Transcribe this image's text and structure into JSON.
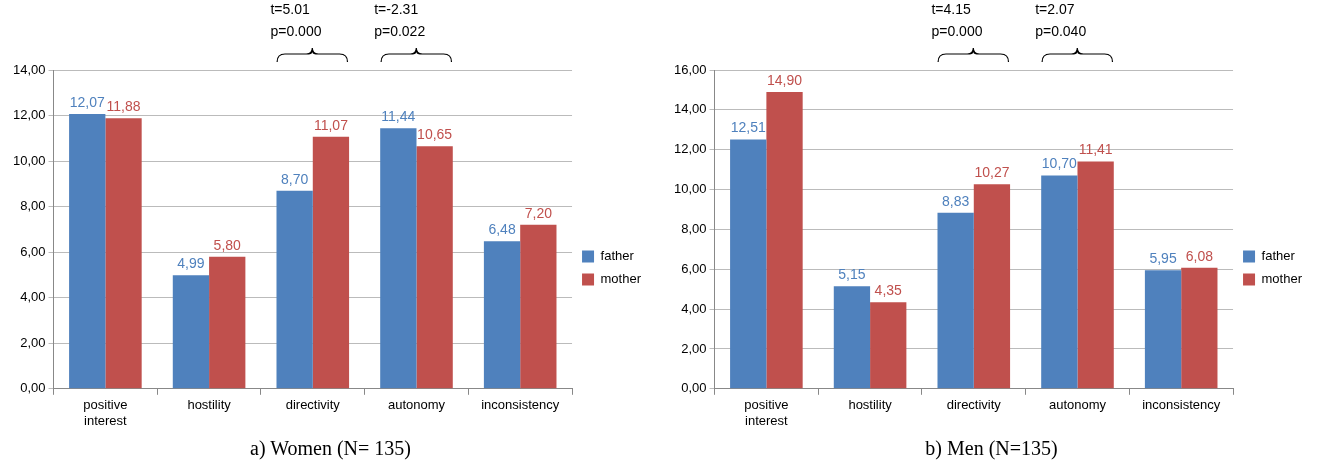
{
  "chart_data": [
    {
      "type": "bar",
      "title": "a) Women (N= 135)",
      "categories": [
        "positive interest",
        "hostility",
        "directivity",
        "autonomy",
        "inconsistency"
      ],
      "series": [
        {
          "name": "father",
          "color": "#4f81bd",
          "values": [
            12.07,
            4.99,
            8.7,
            11.44,
            6.48
          ],
          "value_labels": [
            "12,07",
            "4,99",
            "8,70",
            "11,44",
            "6,48"
          ]
        },
        {
          "name": "mother",
          "color": "#c0504d",
          "values": [
            11.88,
            5.8,
            11.07,
            10.65,
            7.2
          ],
          "value_labels": [
            "11,88",
            "5,80",
            "11,07",
            "10,65",
            "7,20"
          ]
        }
      ],
      "ylim": [
        0,
        14
      ],
      "yticks": [
        {
          "value": 0,
          "label": "0,00"
        },
        {
          "value": 2,
          "label": "2,00"
        },
        {
          "value": 4,
          "label": "4,00"
        },
        {
          "value": 6,
          "label": "6,00"
        },
        {
          "value": 8,
          "label": "8,00"
        },
        {
          "value": 10,
          "label": "10,00"
        },
        {
          "value": 12,
          "label": "12,00"
        },
        {
          "value": 14,
          "label": "14,00"
        }
      ],
      "grid": "y",
      "legend": "right",
      "annotations": [
        "t=5.01\np=0.000",
        "t=-2.31\np=0.022"
      ]
    },
    {
      "type": "bar",
      "title": "b) Men (N=135)",
      "categories": [
        "positive interest",
        "hostility",
        "directivity",
        "autonomy",
        "inconsistency"
      ],
      "series": [
        {
          "name": "father",
          "color": "#4f81bd",
          "values": [
            12.51,
            5.15,
            8.83,
            10.7,
            5.95
          ],
          "value_labels": [
            "12,51",
            "5,15",
            "8,83",
            "10,70",
            "5,95"
          ]
        },
        {
          "name": "mother",
          "color": "#c0504d",
          "values": [
            14.9,
            4.35,
            10.27,
            11.41,
            6.08
          ],
          "value_labels": [
            "14,90",
            "4,35",
            "10,27",
            "11,41",
            "6,08"
          ]
        }
      ],
      "ylim": [
        0,
        16
      ],
      "yticks": [
        {
          "value": 0,
          "label": "0,00"
        },
        {
          "value": 2,
          "label": "2,00"
        },
        {
          "value": 4,
          "label": "4,00"
        },
        {
          "value": 6,
          "label": "6,00"
        },
        {
          "value": 8,
          "label": "8,00"
        },
        {
          "value": 10,
          "label": "10,00"
        },
        {
          "value": 12,
          "label": "12,00"
        },
        {
          "value": 14,
          "label": "14,00"
        },
        {
          "value": 16,
          "label": "16,00"
        }
      ],
      "grid": "y",
      "legend": "right",
      "annotations": [
        "t=4.15\np=0.000",
        "t=2.07\np=0.040"
      ]
    }
  ]
}
